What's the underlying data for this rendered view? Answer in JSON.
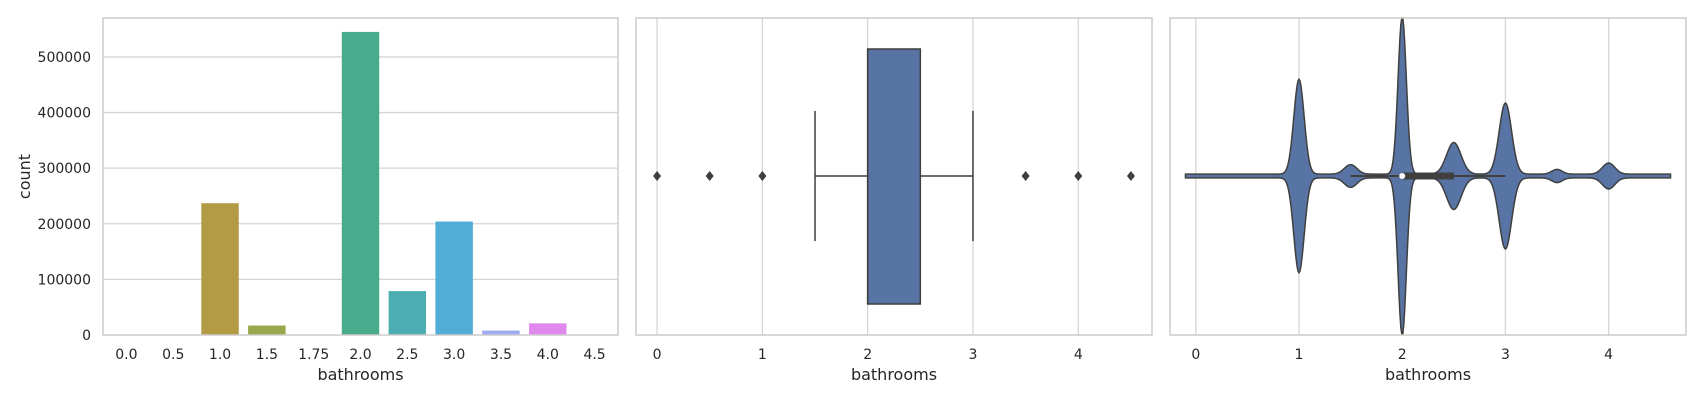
{
  "chart_data": [
    {
      "type": "bar",
      "title": "",
      "xlabel": "bathrooms",
      "ylabel": "count",
      "categories": [
        "0.0",
        "0.5",
        "1.0",
        "1.5",
        "1.75",
        "2.0",
        "2.5",
        "3.0",
        "3.5",
        "4.0",
        "4.5"
      ],
      "values": [
        100,
        100,
        237000,
        17000,
        100,
        545000,
        79000,
        204000,
        8000,
        21000,
        100
      ],
      "colors": [
        "#ea7a78",
        "#e08c53",
        "#b39b45",
        "#9aa74a",
        "#6cb24e",
        "#4aab8c",
        "#4caeb0",
        "#52add6",
        "#a0acf2",
        "#e089ed",
        "#f26db9"
      ],
      "ylim": [
        0,
        570000
      ],
      "yticks": [
        0,
        100000,
        200000,
        300000,
        400000,
        500000
      ],
      "grid": true
    },
    {
      "type": "box",
      "title": "",
      "xlabel": "bathrooms",
      "xlim": [
        -0.2,
        4.7
      ],
      "xticks": [
        0,
        1,
        2,
        3,
        4
      ],
      "q1": 2.0,
      "median": 2.0,
      "q3": 2.5,
      "whisker_low": 1.5,
      "whisker_high": 3.0,
      "outliers": [
        0,
        0.5,
        1.0,
        3.5,
        4.0,
        4.5
      ],
      "color": "#5874a5",
      "grid": true
    },
    {
      "type": "violin",
      "title": "",
      "xlabel": "bathrooms",
      "xlim": [
        -0.25,
        4.75
      ],
      "xticks": [
        0,
        1,
        2,
        3,
        4
      ],
      "range": [
        -0.1,
        4.6
      ],
      "density_peaks": [
        {
          "x": 1.0,
          "height": 0.6
        },
        {
          "x": 1.5,
          "height": 0.06
        },
        {
          "x": 2.0,
          "height": 1.0
        },
        {
          "x": 2.5,
          "height": 0.2
        },
        {
          "x": 3.0,
          "height": 0.45
        },
        {
          "x": 3.5,
          "height": 0.03
        },
        {
          "x": 4.0,
          "height": 0.07
        }
      ],
      "q1": 2.0,
      "median": 2.0,
      "q3": 2.5,
      "whisker_low": 1.5,
      "whisker_high": 3.0,
      "color": "#5874a5",
      "grid": true
    }
  ]
}
